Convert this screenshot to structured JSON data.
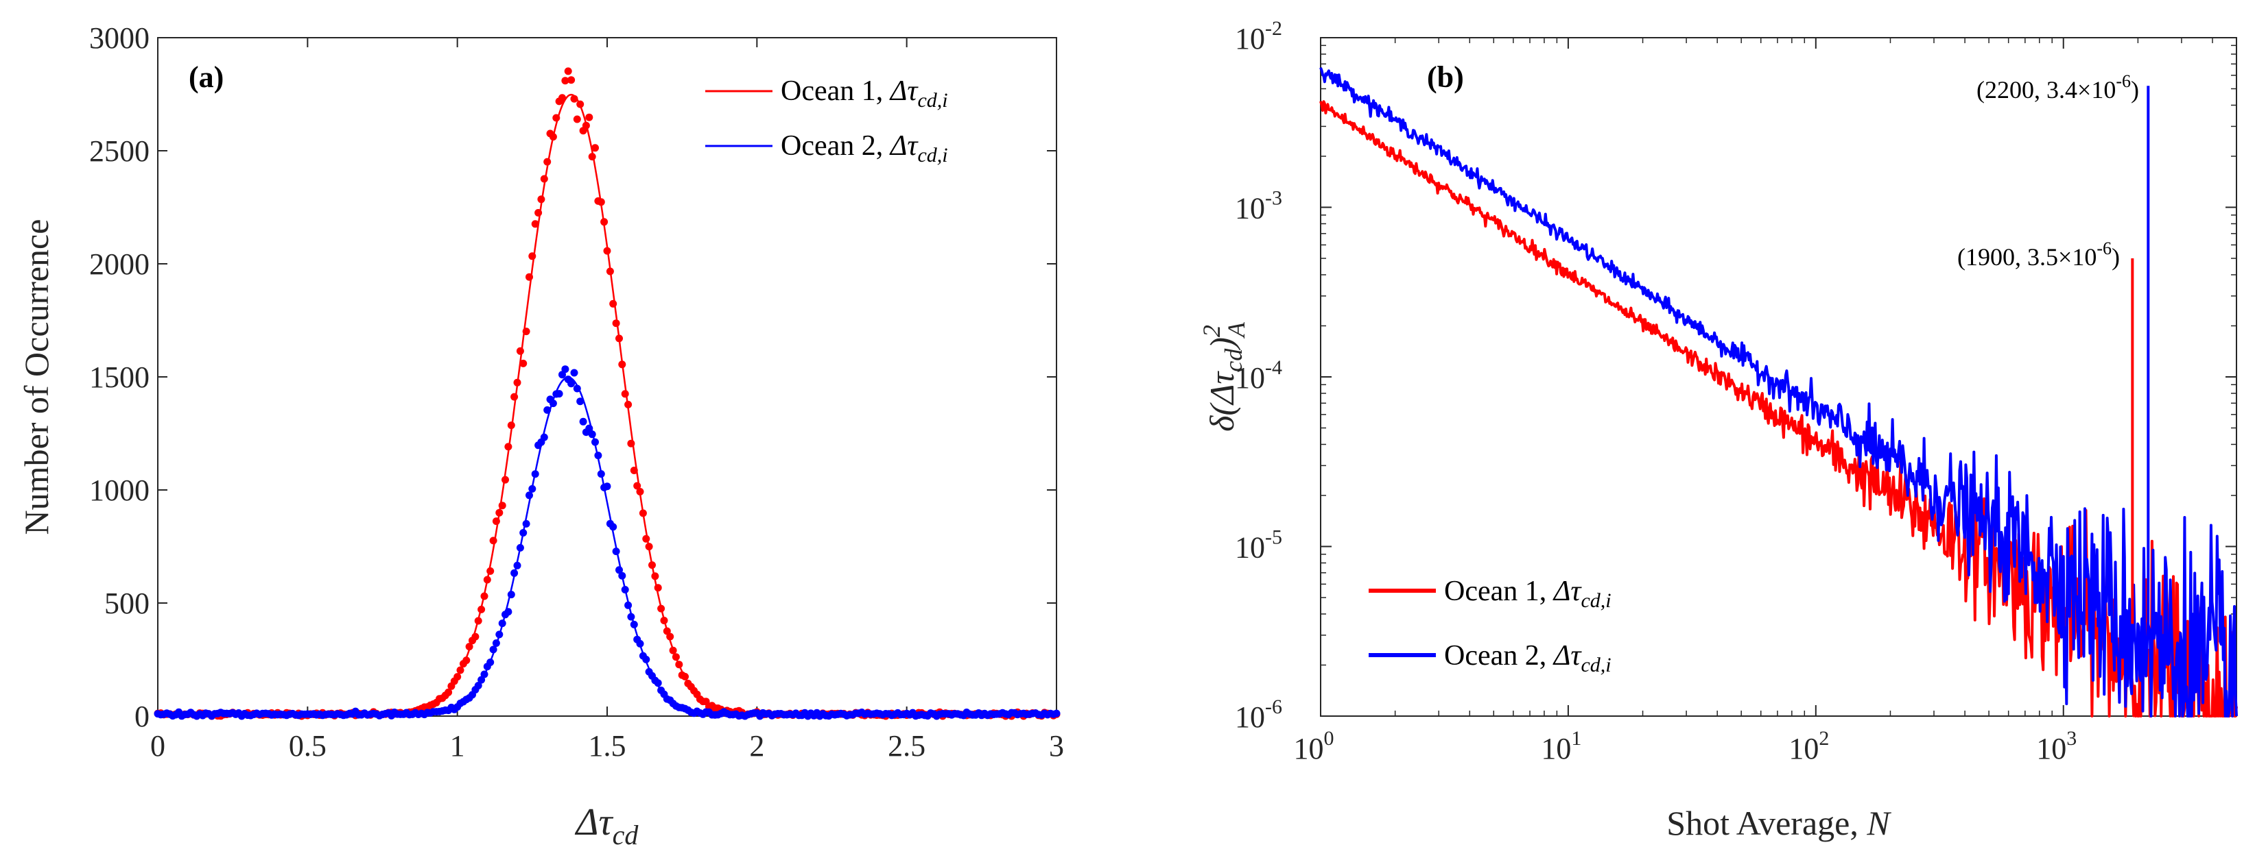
{
  "chart_data": [
    {
      "type": "line",
      "panel_label": "(a)",
      "xlabel": "Δτ",
      "xlabel_sub": "cd",
      "ylabel": "Number of Occurrence",
      "xlim": [
        0,
        3
      ],
      "ylim": [
        0,
        3000
      ],
      "x_ticks": [
        0,
        0.5,
        1,
        1.5,
        2,
        2.5,
        3
      ],
      "x_tick_labels": [
        "0",
        "0.5",
        "1",
        "1.5",
        "2",
        "2.5",
        "3"
      ],
      "y_ticks": [
        0,
        500,
        1000,
        1500,
        2000,
        2500,
        3000
      ],
      "y_tick_labels": [
        "0",
        "500",
        "1000",
        "1500",
        "2000",
        "2500",
        "3000"
      ],
      "legend_position": "top-right",
      "series": [
        {
          "name": "Ocean 1, ",
          "name_math": "Δτ",
          "name_sub": "cd,i",
          "color": "#ff0000",
          "peak_x": 1.38,
          "peak_y": 2740,
          "sigma": 0.16,
          "peak_marker_max": 2810
        },
        {
          "name": "Ocean 2, ",
          "name_math": "Δτ",
          "name_sub": "cd,i",
          "color": "#0000ff",
          "peak_x": 1.37,
          "peak_y": 1490,
          "sigma": 0.135,
          "peak_marker_max": 1510
        }
      ]
    },
    {
      "type": "line",
      "panel_label": "(b)",
      "xscale": "log",
      "yscale": "log",
      "xlabel": "Shot Average, ",
      "xlabel_math": "N",
      "ylabel_math": "δ(Δτ",
      "ylabel_sub": "cd",
      "ylabel_close": ")",
      "ylabel_sup": "2",
      "ylabel_sub2": "A",
      "xlim": [
        1,
        5000
      ],
      "ylim": [
        1e-06,
        0.01
      ],
      "x_ticks": [
        1,
        10,
        100,
        1000
      ],
      "x_tick_labels": [
        {
          "base": "10",
          "exp": "0"
        },
        {
          "base": "10",
          "exp": "1"
        },
        {
          "base": "10",
          "exp": "2"
        },
        {
          "base": "10",
          "exp": "3"
        }
      ],
      "y_ticks": [
        1e-06,
        1e-05,
        0.0001,
        0.001,
        0.01
      ],
      "y_tick_labels": [
        {
          "base": "10",
          "exp": "-6"
        },
        {
          "base": "10",
          "exp": "-5"
        },
        {
          "base": "10",
          "exp": "-4"
        },
        {
          "base": "10",
          "exp": "-3"
        },
        {
          "base": "10",
          "exp": "-2"
        }
      ],
      "legend_position": "bottom-left",
      "series": [
        {
          "name": "Ocean 1, ",
          "name_math": "Δτ",
          "name_sub": "cd,i",
          "color": "#ff0000",
          "start_value": 0.0041,
          "slope": -1.0
        },
        {
          "name": "Ocean 2, ",
          "name_math": "Δτ",
          "name_sub": "cd,i",
          "color": "#0000ff",
          "start_value": 0.0065,
          "slope": -1.0
        }
      ],
      "annotations": [
        {
          "x": 1900,
          "y": 3.5e-06,
          "spike_top": 0.0005,
          "text": "(1900, 3.5×10",
          "exp": "-6",
          "close": ")",
          "color": "#ff0000"
        },
        {
          "x": 2200,
          "y": 3.4e-06,
          "spike_top": 0.0052,
          "text": "(2200, 3.4×10",
          "exp": "-6",
          "close": ")",
          "color": "#0000ff"
        }
      ]
    }
  ]
}
